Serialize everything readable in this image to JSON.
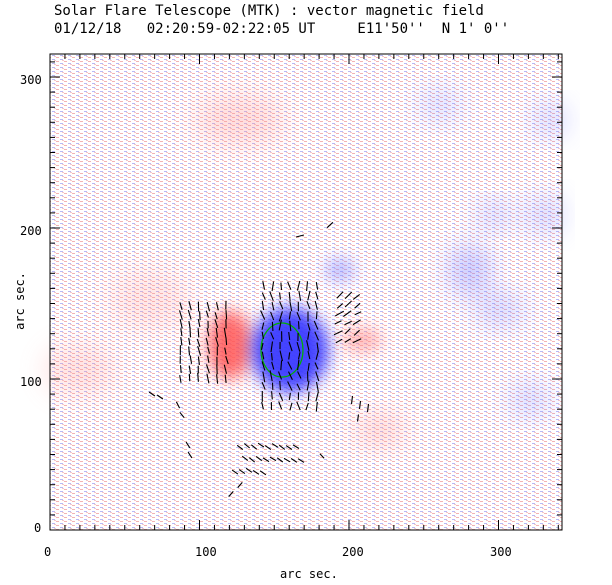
{
  "header": {
    "line1": "Solar Flare Telescope (MTK) : vector magnetic field",
    "line2": "01/12/18   02:20:59-02:22:05 UT     E11'50''  N 1' 0''"
  },
  "axes": {
    "xlabel": "arc sec.",
    "ylabel": "arc sec.",
    "xticks": [
      "0",
      "100",
      "200",
      "300"
    ],
    "yticks": [
      "0",
      "100",
      "200",
      "300"
    ]
  },
  "colors": {
    "positive": "#f07070",
    "negative": "#6f6fff",
    "contour": "#00a000",
    "vector": "#000000"
  }
}
